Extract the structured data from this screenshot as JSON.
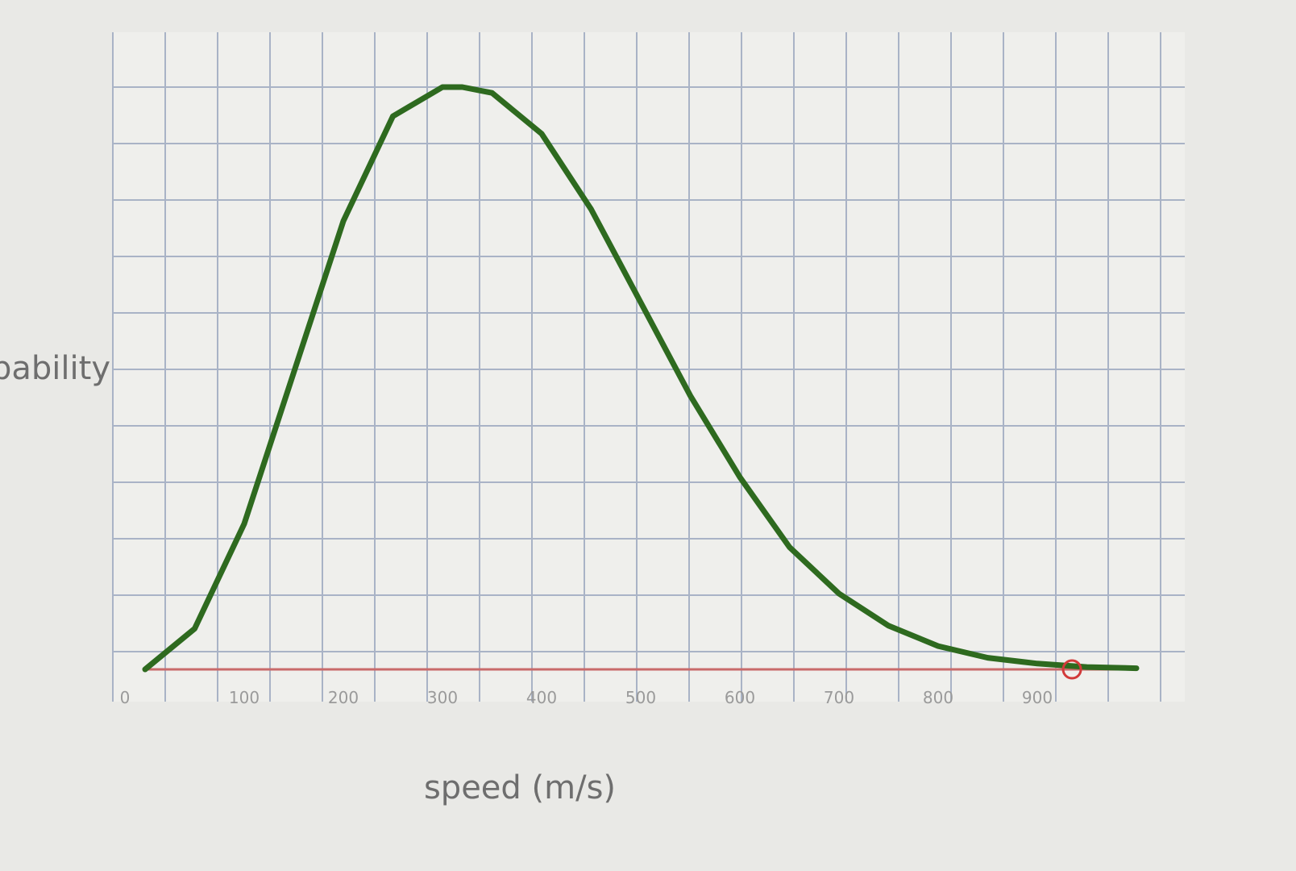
{
  "chart_data": {
    "type": "line",
    "xlabel": "speed (m/s)",
    "ylabel": "pability",
    "xlim": [
      0,
      1000
    ],
    "ylim": [
      0,
      1
    ],
    "x_ticks": [
      0,
      100,
      200,
      300,
      400,
      500,
      600,
      700,
      800,
      900
    ],
    "x_tick_labels": [
      "0",
      "100",
      "200",
      "300",
      "400",
      "500",
      "600",
      "700",
      "800",
      "900"
    ],
    "grid": true,
    "series": [
      {
        "color": "#2e6a1f",
        "x": [
          0,
          50,
          100,
          150,
          200,
          250,
          300,
          320,
          350,
          400,
          450,
          500,
          550,
          600,
          650,
          700,
          750,
          800,
          850,
          900,
          950,
          1000
        ],
        "y": [
          0,
          0.07,
          0.25,
          0.51,
          0.77,
          0.95,
          1.0,
          1.0,
          0.99,
          0.92,
          0.79,
          0.63,
          0.47,
          0.33,
          0.21,
          0.13,
          0.075,
          0.04,
          0.02,
          0.01,
          0.004,
          0.002
        ]
      }
    ],
    "baseline": {
      "color": "#c96a6a",
      "y": 0
    },
    "marker": {
      "x": 935,
      "y": 0,
      "shape": "open-circle",
      "color": "#d23a3a"
    }
  }
}
